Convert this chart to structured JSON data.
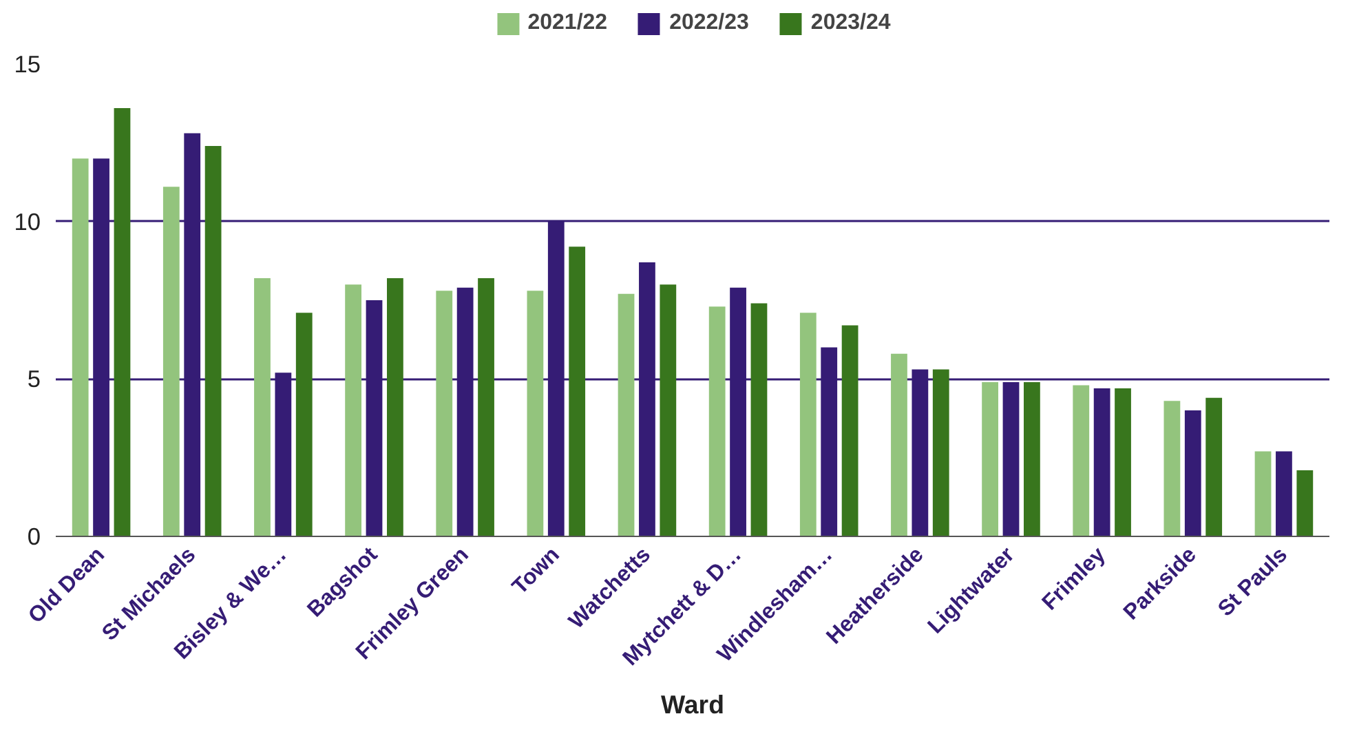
{
  "chart_data": {
    "type": "bar",
    "xlabel": "Ward",
    "categories": [
      "Old Dean",
      "St Michaels",
      "Bisley & We…",
      "Bagshot",
      "Frimley Green",
      "Town",
      "Watchetts",
      "Mytchett & D…",
      "Windlesham…",
      "Heatherside",
      "Lightwater",
      "Frimley",
      "Parkside",
      "St Pauls"
    ],
    "series": [
      {
        "name": "2021/22",
        "color": "#93c47d",
        "values": [
          12.0,
          11.1,
          8.2,
          8.0,
          7.8,
          7.8,
          7.7,
          7.3,
          7.1,
          5.8,
          4.9,
          4.8,
          4.3,
          2.7
        ]
      },
      {
        "name": "2022/23",
        "color": "#351c75",
        "values": [
          12.0,
          12.8,
          5.2,
          7.5,
          7.9,
          10.0,
          8.7,
          7.9,
          6.0,
          5.3,
          4.9,
          4.7,
          4.0,
          2.7
        ]
      },
      {
        "name": "2023/24",
        "color": "#38761d",
        "values": [
          13.6,
          12.4,
          7.1,
          8.2,
          8.2,
          9.2,
          8.0,
          7.4,
          6.7,
          5.3,
          4.9,
          4.7,
          4.4,
          2.1
        ]
      }
    ],
    "ylim": [
      0,
      15
    ],
    "yticks": [
      0,
      5,
      10,
      15
    ],
    "grid": "y",
    "legend": "top"
  }
}
